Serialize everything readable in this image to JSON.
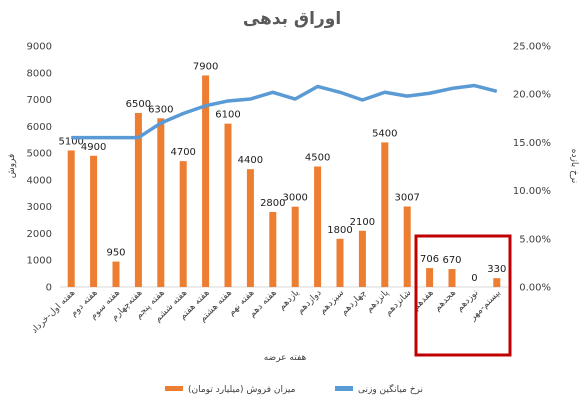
{
  "chart_data": {
    "type": "bar",
    "title": "اوراق بدهی",
    "xlabel": "هفته عرضه",
    "ylabel": "فروش",
    "y2label": "نرخ بازده",
    "ylim": [
      0,
      9000
    ],
    "y2lim": [
      0,
      25
    ],
    "yticks": [
      "0",
      "1000",
      "2000",
      "3000",
      "4000",
      "5000",
      "6000",
      "7000",
      "8000",
      "9000"
    ],
    "y2ticks": [
      "0.00%",
      "5.00%",
      "10.00%",
      "15.00%",
      "20.00%",
      "25.00%"
    ],
    "categories": [
      "هفته اول-خرداد",
      "هفته دوم",
      "هفته سوم",
      "هفته‌چهارم",
      "هفته پنجم",
      "هفته ششم",
      "هفته هفتم",
      "هفته هشتم",
      "هفته نهم",
      "هفته دهم",
      "یازدهم",
      "دوازدهم",
      "سیزدهم",
      "چهاردهم",
      "پانزدهم",
      "شانزدهم",
      "هفدهم",
      "هجدهم",
      "نوزدهم",
      "بیستم-مهر"
    ],
    "series": [
      {
        "name": "میزان فروش (میلیارد تومان)",
        "type": "bar",
        "color": "#ED7D31",
        "values": [
          5100,
          4900,
          950,
          6500,
          6300,
          4700,
          7900,
          6100,
          4400,
          2800,
          3000,
          4500,
          1800,
          2100,
          5400,
          3007,
          706,
          670,
          0,
          330
        ],
        "labels": [
          "5100",
          "4900",
          "950",
          "6500",
          "6300",
          "4700",
          "7900",
          "6100",
          "4400",
          "2800",
          "3000",
          "4500",
          "1800",
          "2100",
          "5400",
          "3007",
          "706",
          "670",
          "0",
          "330"
        ]
      },
      {
        "name": "نرخ میانگین وزنی",
        "type": "line",
        "color": "#5B9BD5",
        "axis": "secondary",
        "values": [
          15.5,
          15.5,
          15.5,
          15.5,
          17.0,
          18.0,
          18.8,
          19.3,
          19.5,
          20.2,
          19.5,
          20.8,
          20.2,
          19.4,
          20.2,
          19.8,
          20.1,
          20.6,
          20.9,
          20.3
        ]
      }
    ],
    "grid": false,
    "legend": "bottom",
    "highlight": {
      "from_index": 16,
      "to_index": 19,
      "color": "#C00000"
    }
  }
}
